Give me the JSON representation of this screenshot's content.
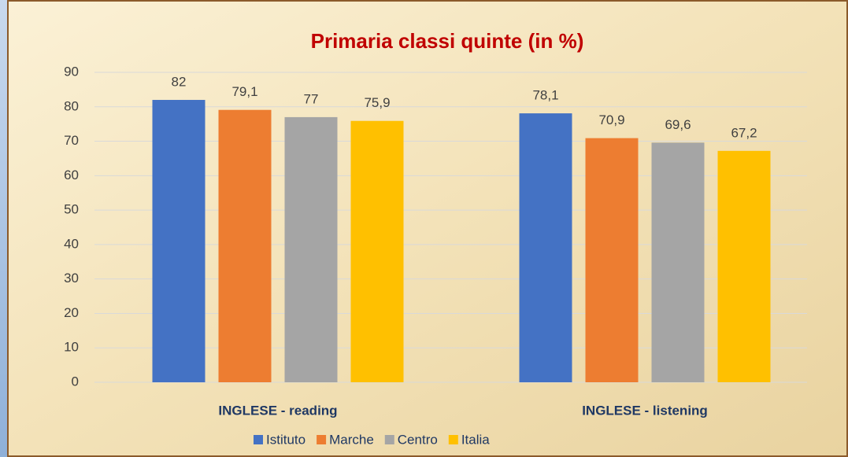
{
  "chart_data": {
    "type": "bar",
    "title": "Primaria classi quinte   (in %)",
    "categories": [
      "INGLESE - reading",
      "INGLESE - listening"
    ],
    "series": [
      {
        "name": "Istituto",
        "color": "#4472c4",
        "values": [
          82,
          78.1
        ],
        "value_labels": [
          "82",
          "78,1"
        ]
      },
      {
        "name": "Marche",
        "color": "#ed7d31",
        "values": [
          79.1,
          70.9
        ],
        "value_labels": [
          "79,1",
          "70,9"
        ]
      },
      {
        "name": "Centro",
        "color": "#a5a5a5",
        "values": [
          77,
          69.6
        ],
        "value_labels": [
          "77",
          "69,6"
        ]
      },
      {
        "name": "Italia",
        "color": "#ffc000",
        "values": [
          75.9,
          67.2
        ],
        "value_labels": [
          "75,9",
          "67,2"
        ]
      }
    ],
    "ylim": [
      0,
      90
    ],
    "yticks": [
      0,
      10,
      20,
      30,
      40,
      50,
      60,
      70,
      80,
      90
    ],
    "grid": true,
    "legend": "bottom"
  }
}
